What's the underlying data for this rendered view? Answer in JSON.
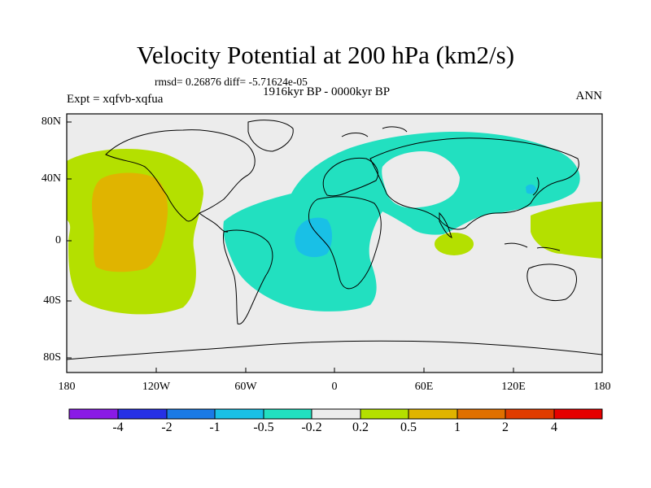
{
  "title": "Velocity Potential at 200 hPa (km2/s)",
  "stats": "rmsd= 0.26876 diff= -5.71624e-05",
  "period": "1916kyr BP - 0000kyr BP",
  "experiment": "Expt = xqfvb-xqfua",
  "season": "ANN",
  "map": {
    "lat_ticks": [
      "80N",
      "40N",
      "0",
      "40S",
      "80S"
    ],
    "lon_ticks": [
      "180",
      "120W",
      "60W",
      "0",
      "60E",
      "120E",
      "180"
    ]
  },
  "colorbar": {
    "labels": [
      "-4",
      "-2",
      "-1",
      "-0.5",
      "-0.2",
      "0.2",
      "0.5",
      "1",
      "2",
      "4"
    ],
    "colors": [
      "#8a1ae6",
      "#2630e6",
      "#1a7ae6",
      "#19c0e6",
      "#22e0c0",
      "#ececec",
      "#b4e000",
      "#e0b400",
      "#e07000",
      "#e03c00",
      "#e60000"
    ]
  }
}
